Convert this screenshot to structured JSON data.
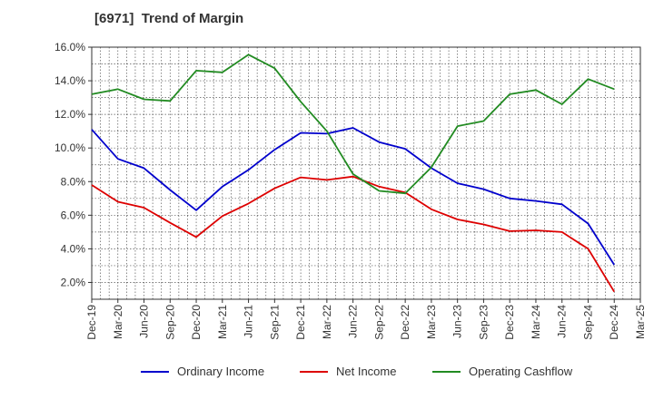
{
  "chart_data": {
    "type": "line",
    "title": "[6971]  Trend of Margin",
    "xlabel": "",
    "ylabel": "",
    "x_ticks": [
      "Dec-19",
      "Mar-20",
      "Jun-20",
      "Sep-20",
      "Dec-20",
      "Mar-21",
      "Jun-21",
      "Sep-21",
      "Dec-21",
      "Mar-22",
      "Jun-22",
      "Sep-22",
      "Dec-22",
      "Mar-23",
      "Jun-23",
      "Sep-23",
      "Dec-23",
      "Mar-24",
      "Jun-24",
      "Sep-24",
      "Dec-24",
      "Mar-25"
    ],
    "y_ticks": [
      "2.0%",
      "4.0%",
      "6.0%",
      "8.0%",
      "10.0%",
      "12.0%",
      "14.0%",
      "16.0%"
    ],
    "ylim": [
      1.0,
      16.0
    ],
    "grid": true,
    "legend_position": "bottom",
    "series": [
      {
        "name": "Ordinary Income",
        "color": "#0000cc",
        "values": [
          11.1,
          9.35,
          8.8,
          7.5,
          6.3,
          7.7,
          8.7,
          9.9,
          10.9,
          10.85,
          11.2,
          10.35,
          9.95,
          8.8,
          7.9,
          7.55,
          7.0,
          6.85,
          6.65,
          5.5,
          3.05
        ]
      },
      {
        "name": "Net Income",
        "color": "#dd0000",
        "values": [
          7.8,
          6.8,
          6.45,
          5.55,
          4.7,
          5.95,
          6.7,
          7.6,
          8.25,
          8.1,
          8.3,
          7.7,
          7.35,
          6.35,
          5.75,
          5.45,
          5.05,
          5.1,
          5.0,
          4.0,
          1.45
        ]
      },
      {
        "name": "Operating Cashflow",
        "color": "#228b22",
        "values": [
          13.2,
          13.5,
          12.9,
          12.8,
          14.6,
          14.5,
          15.55,
          14.75,
          12.75,
          11.0,
          8.45,
          7.45,
          7.3,
          8.85,
          11.3,
          11.6,
          13.2,
          13.45,
          12.6,
          14.1,
          13.5
        ]
      }
    ]
  }
}
